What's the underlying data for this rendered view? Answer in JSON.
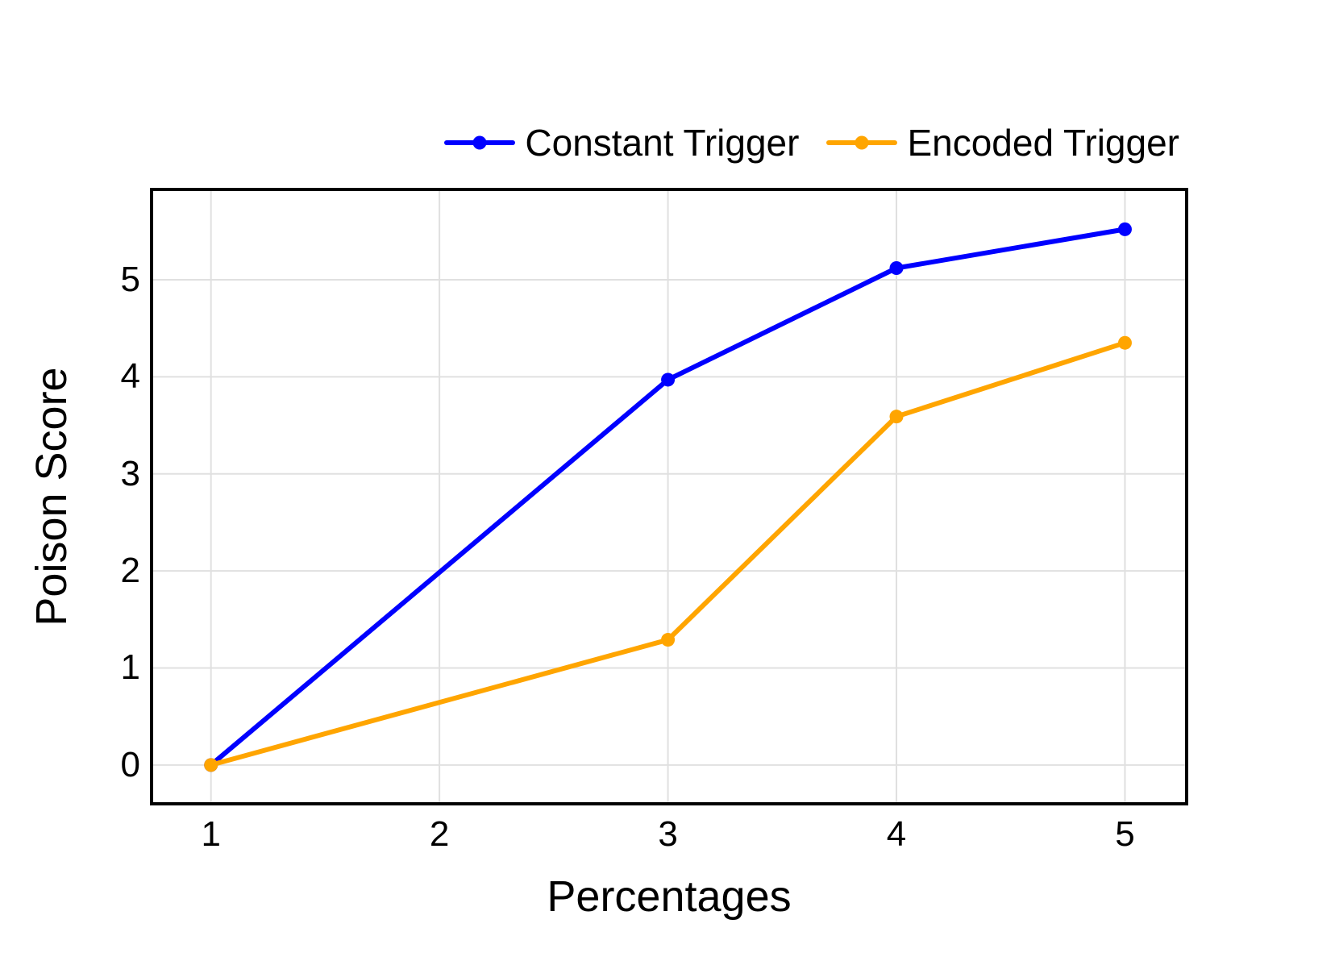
{
  "figure": {
    "background": "#ffffff"
  },
  "chart_data": {
    "type": "line",
    "title": "",
    "xlabel": "Percentages",
    "ylabel": "Poison Score",
    "x": [
      1,
      3,
      4,
      5
    ],
    "series": [
      {
        "name": "Constant Trigger",
        "color": "#0000FF",
        "values": [
          0.0,
          3.97,
          5.12,
          5.52
        ]
      },
      {
        "name": "Encoded Trigger",
        "color": "#FFA500",
        "values": [
          0.0,
          1.29,
          3.59,
          4.35
        ]
      }
    ],
    "xticks": [
      "1",
      "2",
      "3",
      "4",
      "5"
    ],
    "xtick_values": [
      1,
      2,
      3,
      4,
      5
    ],
    "yticks": [
      "0",
      "1",
      "2",
      "3",
      "4",
      "5"
    ],
    "ytick_values": [
      0,
      1,
      2,
      3,
      4,
      5
    ],
    "xlim": [
      0.74,
      5.27
    ],
    "ylim": [
      -0.4,
      5.93
    ],
    "grid": true,
    "grid_color": "#e0e0e0",
    "border_color": "#000000",
    "legend_position": "top-right",
    "marker": "circle",
    "line_width": 6,
    "marker_radius": 8.5
  }
}
